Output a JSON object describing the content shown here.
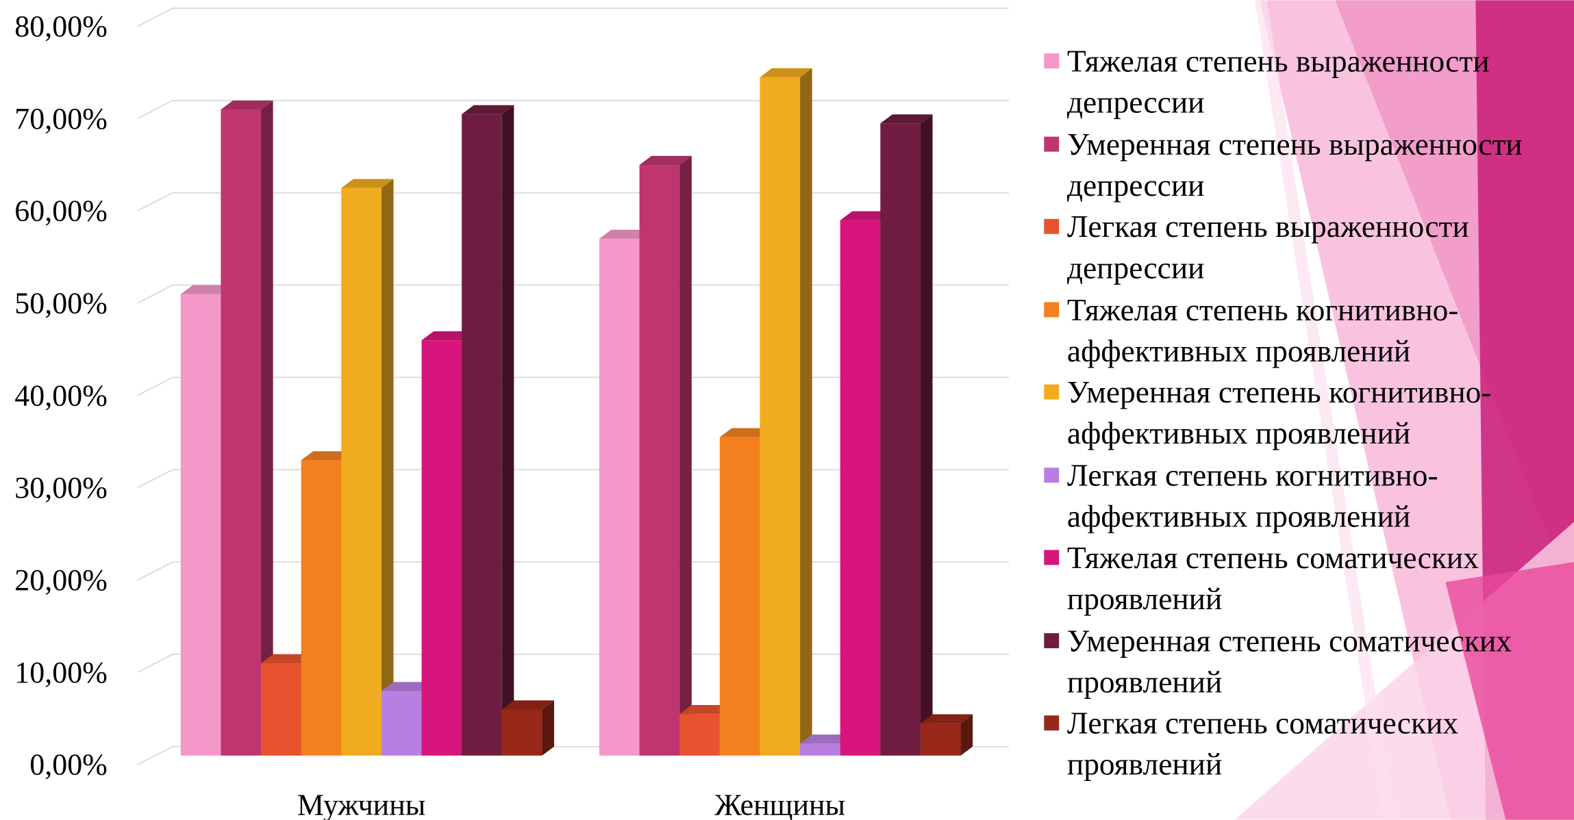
{
  "chart_data": {
    "type": "bar3d",
    "categories": [
      "Мужчины",
      "Женщины"
    ],
    "ylim": [
      0,
      80
    ],
    "yticks": [
      {
        "value": 0,
        "label": "0,00%"
      },
      {
        "value": 10,
        "label": "10,00%"
      },
      {
        "value": 20,
        "label": "20,00%"
      },
      {
        "value": 30,
        "label": "30,00%"
      },
      {
        "value": 40,
        "label": "40,00%"
      },
      {
        "value": 50,
        "label": "50,00%"
      },
      {
        "value": 60,
        "label": "60,00%"
      },
      {
        "value": 70,
        "label": "70,00%"
      },
      {
        "value": 80,
        "label": "80,00%"
      }
    ],
    "grid": true,
    "legend": "right",
    "series": [
      {
        "name": "Тяжелая степень выраженности депрессии",
        "color": "#f497c9",
        "values": [
          50,
          56
        ]
      },
      {
        "name": "Умеренная степень выраженности депрессии",
        "color": "#bf3570",
        "values": [
          70,
          64
        ]
      },
      {
        "name": "Легкая степень выраженности депрессии",
        "color": "#e8532f",
        "values": [
          10,
          4.5
        ]
      },
      {
        "name": "Тяжелая степень когнитивно-аффективных проявлений",
        "color": "#f2801e",
        "values": [
          32,
          34.5
        ]
      },
      {
        "name": "Умеренная степень когнитивно-аффективных проявлений",
        "color": "#f0ab1e",
        "values": [
          61.5,
          73.5
        ]
      },
      {
        "name": "Легкая степень когнитивно-аффективных проявлений",
        "color": "#b87fe0",
        "values": [
          7,
          1.3
        ]
      },
      {
        "name": "Тяжелая степень соматических проявлений",
        "color": "#d8157c",
        "values": [
          45,
          58
        ]
      },
      {
        "name": "Умеренная степень соматических проявлений",
        "color": "#6e1d40",
        "values": [
          69.5,
          68.5
        ]
      },
      {
        "name": "Легкая степень соматических проявлений",
        "color": "#982817",
        "values": [
          5,
          3.5
        ]
      }
    ]
  }
}
